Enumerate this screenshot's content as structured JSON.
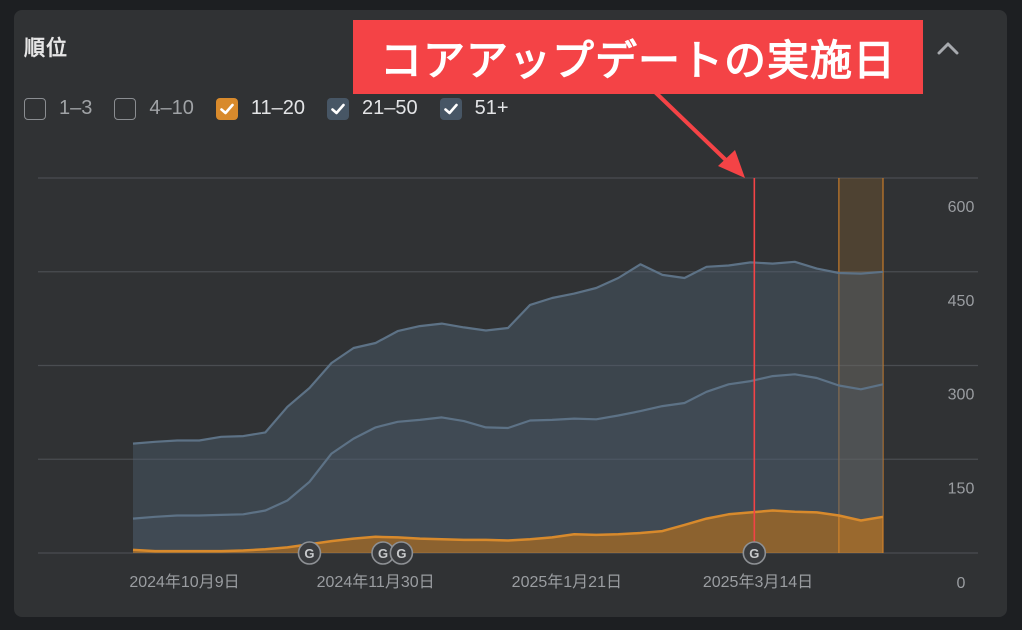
{
  "panel": {
    "title": "順位"
  },
  "legend": [
    {
      "label": "1–3",
      "checked": false,
      "color": "#8a8d91"
    },
    {
      "label": "4–10",
      "checked": false,
      "color": "#8a8d91"
    },
    {
      "label": "11–20",
      "checked": true,
      "color": "#d88a2c"
    },
    {
      "label": "21–50",
      "checked": true,
      "color": "#475665"
    },
    {
      "label": "51+",
      "checked": true,
      "color": "#475665"
    }
  ],
  "annotation": {
    "text": "コアアップデートの実施日",
    "color": "#f44346"
  },
  "chart_data": {
    "type": "area",
    "stacked": true,
    "ylim": [
      0,
      600
    ],
    "y_ticks": [
      0,
      150,
      300,
      450,
      600
    ],
    "y_tick_labels": [
      "0",
      "150",
      "300",
      "450",
      "600"
    ],
    "x_tick_labels": [
      "2024年10月9日",
      "2024年11月30日",
      "2025年1月21日",
      "2025年3月14日"
    ],
    "x_tick_dates": [
      "2024-10-09",
      "2024-11-30",
      "2025-01-21",
      "2025-03-14"
    ],
    "grid": true,
    "dates": [
      "2024-09-25",
      "2024-10-01",
      "2024-10-07",
      "2024-10-13",
      "2024-10-19",
      "2024-10-25",
      "2024-10-31",
      "2024-11-06",
      "2024-11-12",
      "2024-11-18",
      "2024-11-24",
      "2024-11-30",
      "2024-12-06",
      "2024-12-12",
      "2024-12-18",
      "2024-12-24",
      "2024-12-30",
      "2025-01-05",
      "2025-01-11",
      "2025-01-17",
      "2025-01-23",
      "2025-01-29",
      "2025-02-04",
      "2025-02-10",
      "2025-02-16",
      "2025-02-22",
      "2025-02-28",
      "2025-03-06",
      "2025-03-12",
      "2025-03-18",
      "2025-03-24",
      "2025-03-30",
      "2025-04-05",
      "2025-04-11",
      "2025-04-17"
    ],
    "series": [
      {
        "name": "11–20",
        "color": "#d88a2c",
        "values": [
          5,
          3,
          3,
          3,
          3,
          4,
          6,
          9,
          14,
          19,
          23,
          26,
          25,
          23,
          22,
          21,
          21,
          20,
          22,
          25,
          30,
          29,
          30,
          32,
          35,
          45,
          55,
          62,
          65,
          68,
          66,
          65,
          60,
          52,
          58
        ]
      },
      {
        "name": "21–50",
        "color": "#475665",
        "values": [
          50,
          55,
          57,
          57,
          58,
          58,
          62,
          75,
          100,
          140,
          160,
          175,
          185,
          190,
          195,
          190,
          180,
          180,
          190,
          188,
          185,
          185,
          190,
          195,
          200,
          195,
          203,
          208,
          210,
          215,
          220,
          215,
          208,
          210,
          212
        ]
      },
      {
        "name": "51+",
        "color": "#475665",
        "values": [
          120,
          120,
          120,
          120,
          125,
          125,
          125,
          150,
          150,
          145,
          145,
          135,
          145,
          150,
          150,
          150,
          155,
          160,
          185,
          195,
          200,
          210,
          220,
          235,
          210,
          200,
          200,
          190,
          190,
          180,
          180,
          175,
          180,
          185,
          180
        ]
      }
    ],
    "google_update_markers": [
      "2024-11-12",
      "2024-12-02",
      "2024-12-07",
      "2025-03-13"
    ],
    "core_update_date": "2025-03-13",
    "highlight_range": [
      "2025-04-05",
      "2025-04-17"
    ]
  }
}
